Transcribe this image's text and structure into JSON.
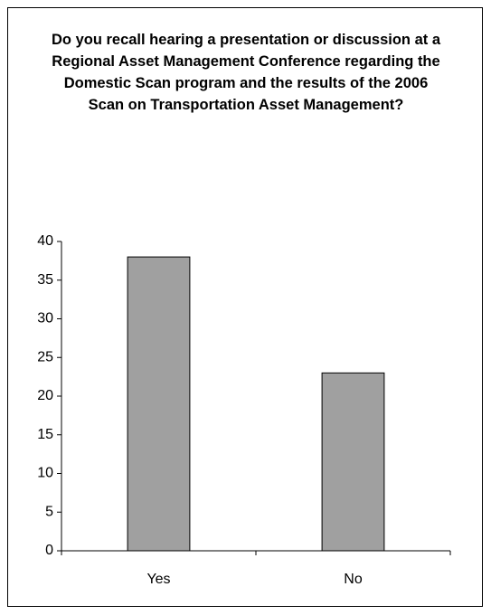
{
  "chart_data": {
    "type": "bar",
    "title": "Do you recall hearing a presentation or discussion at a Regional Asset Management Conference regarding the Domestic Scan program and the results of the 2006 Scan on Transportation Asset Management?",
    "categories": [
      "Yes",
      "No"
    ],
    "values": [
      38,
      23
    ],
    "color": "#a0a0a0",
    "ylim": [
      0,
      40
    ],
    "yticks": [
      0,
      5,
      10,
      15,
      20,
      25,
      30,
      35,
      40
    ],
    "grid": false
  }
}
